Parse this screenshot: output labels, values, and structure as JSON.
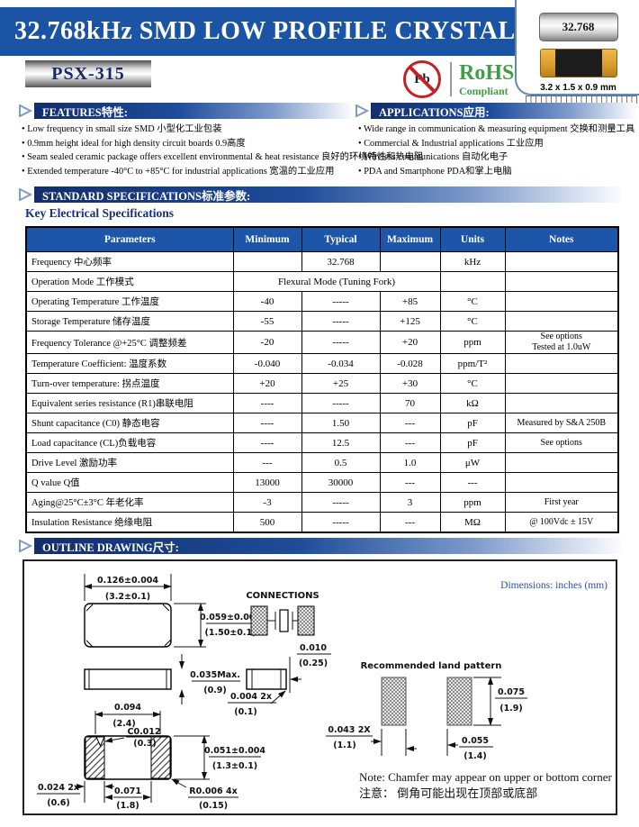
{
  "header": {
    "title": "32.768kHz SMD LOW PROFILE CRYSTAL",
    "model": "PSX-315",
    "pb": "Pb",
    "rohs": "RoHS",
    "rohs_compliant": "Compliant",
    "marking": "32.768",
    "package_size": "3.2 x 1.5 x 0.9 mm"
  },
  "features": {
    "title": "FEATURES特性:",
    "items": [
      "Low frequency in small size SMD  小型化工业包装",
      "0.9mm height ideal for high density circuit boards  0.9高度",
      "Seam sealed ceramic package offers excellent environmental & heat resistance 良好的环境特性和热电阻",
      "Extended temperature -40°C to +85°C for industrial applications 宽温的工业应用"
    ]
  },
  "applications": {
    "title": "APPLICATIONS应用:",
    "items": [
      "Wide range in communication & measuring equipment  交换和测量工具",
      "Commercial & Industrial applications  工业应用",
      "Wireless communications  自动化电子",
      "PDA and Smartphone  PDA和掌上电脑"
    ]
  },
  "specs": {
    "title": "STANDARD SPECIFICATIONS标准参数:",
    "subtitle": "Key Electrical Specifications"
  },
  "spec_table": {
    "columns": [
      "Parameters",
      "Minimum",
      "Typical",
      "Maximum",
      "Units",
      "Notes"
    ],
    "rows": [
      {
        "param": "Frequency  中心频率",
        "min": "",
        "typ": "32.768",
        "max": "",
        "units": "kHz",
        "notes": ""
      },
      {
        "param": "Operation Mode 工作模式",
        "span": "Flexural Mode (Tuning Fork)",
        "units": "",
        "notes": ""
      },
      {
        "param": "Operating Temperature  工作温度",
        "min": "-40",
        "typ": "-----",
        "max": "+85",
        "units": "°C",
        "notes": ""
      },
      {
        "param": "Storage Temperature  储存温度",
        "min": "-55",
        "typ": "-----",
        "max": "+125",
        "units": "°C",
        "notes": ""
      },
      {
        "param": "Frequency Tolerance @+25°C 调整频差",
        "min": "-20",
        "typ": "-----",
        "max": "+20",
        "units": "ppm",
        "notes": "See options\nTested at 1.0uW"
      },
      {
        "param": "Temperature Coefficient: 温度系数",
        "min": "-0.040",
        "typ": "-0.034",
        "max": "-0.028",
        "units": "ppm/T²",
        "notes": ""
      },
      {
        "param": "Turn-over temperature: 拐点温度",
        "min": "+20",
        "typ": "+25",
        "max": "+30",
        "units": "°C",
        "notes": ""
      },
      {
        "param": "Equivalent series resistance (R1)串联电阻",
        "min": "----",
        "typ": "-----",
        "max": "70",
        "units": "kΩ",
        "notes": ""
      },
      {
        "param": "Shunt capacitance (C0) 静态电容",
        "min": "----",
        "typ": "1.50",
        "max": "---",
        "units": "pF",
        "notes": "Measured by S&A 250B"
      },
      {
        "param": "Load capacitance (CL)负载电容",
        "min": "----",
        "typ": "12.5",
        "max": "---",
        "units": "pF",
        "notes": "See options"
      },
      {
        "param": "Drive Level 激励功率",
        "min": "---",
        "typ": "0.5",
        "max": "1.0",
        "units": "μW",
        "notes": ""
      },
      {
        "param": "Q value  Q值",
        "min": "13000",
        "typ": "30000",
        "max": "---",
        "units": "---",
        "notes": ""
      },
      {
        "param": "Aging@25°C±3°C 年老化率",
        "min": "-3",
        "typ": "-----",
        "max": "3",
        "units": "ppm",
        "notes": "First year"
      },
      {
        "param": "Insulation Resistance  绝缘电阻",
        "min": "500",
        "typ": "-----",
        "max": "---",
        "units": "MΩ",
        "notes": "@ 100Vdc ± 15V"
      }
    ]
  },
  "outline": {
    "title": "OUTLINE DRAWING尺寸:",
    "dims_note": "Dimensions: inches (mm)",
    "connections": "CONNECTIONS",
    "land_pattern": "Recommended  land  pattern",
    "note_en": "Note: Chamfer may appear on upper or bottom corner",
    "note_cn": "注意： 倒角可能出现在顶部或底部",
    "dims": {
      "top_width": [
        "0.126±0.004",
        "(3.2±0.1)"
      ],
      "top_height": [
        "0.059±0.004",
        "(1.50±0.1)"
      ],
      "side_height": [
        "0.035Max.",
        "(0.9)"
      ],
      "pad_end": [
        "0.010",
        "(0.25)"
      ],
      "pad_thk": [
        "0.004  2x",
        "(0.1)"
      ],
      "pad_span": [
        "0.094",
        "(2.4)"
      ],
      "chamfer": [
        "C0.012",
        "(0.3)"
      ],
      "bottom_height": [
        "0.051±0.004",
        "(1.3±0.1)"
      ],
      "pad_width": [
        "0.024  2x",
        "(0.6)"
      ],
      "pad_gap": [
        "0.071",
        "(1.8)"
      ],
      "corner_r": [
        "R0.006  4x",
        "(0.15)"
      ],
      "land_height": [
        "0.075",
        "(1.9)"
      ],
      "land_gap": [
        "0.043  2X",
        "(1.1)"
      ],
      "land_width": [
        "0.055",
        "(1.4)"
      ]
    }
  }
}
